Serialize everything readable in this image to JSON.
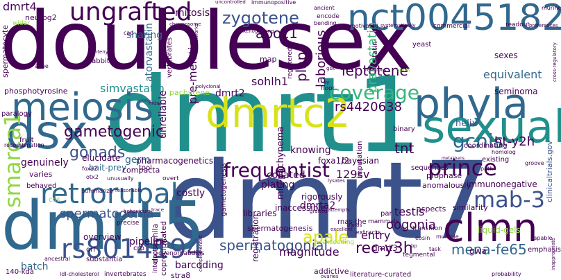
{
  "title": "",
  "palette": {
    "purple": "#440154",
    "indigo": "#3b528b",
    "blue": "#31688e",
    "teal": "#21908d",
    "green": "#35b779",
    "lime": "#90d743",
    "yellow": "#d8e219"
  },
  "words": [
    "doublesex",
    "dmrt1",
    "dmrt7",
    "dmrt5",
    "dsx",
    "sexual",
    "dmrtc2",
    "meiosis",
    "phyla",
    "nct00451828",
    "ungrafted",
    "clmn",
    "retrorubal",
    "prince",
    "rs8014194",
    "mab-3",
    "frequentist",
    "smarca1",
    "gcnis",
    "coverage",
    "dmrt4",
    "zygotene",
    "spermatogonia",
    "gonads",
    "gametogenic",
    "apale",
    "leptotene",
    "rec-y3h",
    "mena-fe65",
    "spermatogonial",
    "tnt",
    "apoc1",
    "sohlh1",
    "rs4420638",
    "mitosis",
    "plap",
    "laborious",
    "pravastatin",
    "atorvastatin",
    "simvastatin",
    "pre-meiotic",
    "dmrt2",
    "dmrta2",
    "ht-y2h",
    "equivalent",
    "seminoma",
    "helix",
    "immunonegative",
    "oogonia",
    "testis",
    "129sv",
    "magnitude",
    "entry",
    "barcoding",
    "pipeline",
    "batch",
    "overview",
    "costly",
    "collated",
    "plating",
    "knowing",
    "genuinely",
    "bait-prey",
    "germ",
    "sharing",
    "pachytene",
    "unreliable",
    "mid-pachynema",
    "foxa1/2",
    "bayesian",
    "neurog2",
    "phosphotyrosine",
    "paralogy",
    "spermatocyte",
    "sexes",
    "prophase",
    "rigorously",
    "inaccessible",
    "liquid-gels",
    "aspects",
    "similarity",
    "coordinating",
    "clinicaltrials.gov",
    "similarity",
    "anomalously",
    "gwa",
    "emphasis",
    "gametogenesis",
    "libraries",
    "pharmacogenetics",
    "spermatogenesis",
    "dmrt3",
    "registration",
    "drosophila",
    "coprecipitated",
    "rnas-the",
    "crp",
    "tegmental",
    "addictive",
    "stra8",
    "caenorhabditis",
    "invertebrates",
    "ldl-cholesterol",
    "ancestral",
    "140-kda",
    "orf",
    "substantia",
    "compacta",
    "elucidate",
    "varies",
    "fruit",
    "recombination",
    "behaved",
    "cos",
    "tool",
    "floor",
    "map",
    "statin",
    "yeast",
    "commercial",
    "readout",
    "preferences",
    "encode",
    "bending",
    "motivated",
    "systematically",
    "ancient",
    "uncontrolled",
    "immunopositive",
    "chromosome",
    "networks",
    "rabbit",
    "synteny",
    "apoe",
    "wider",
    "vertebrates",
    "presomitic",
    "registered",
    "xenografting",
    "cap",
    "xy",
    "arose",
    "relations",
    "spots",
    "transition",
    "sequences",
    "existing",
    "path",
    "groove",
    "homolog",
    "metazoans",
    "binary",
    "imputation",
    "overt",
    "unusually",
    "foxa2",
    "otx2",
    "summarize",
    "reasonable",
    "precise",
    "behaviours",
    "trace",
    "interactors",
    "complemented",
    "extracts",
    "mammals",
    "par",
    "excellent",
    "bands",
    "exceeding",
    "multiple",
    "probability",
    "literature-curated",
    "ovaries",
    "attempts",
    "grafted",
    "lysates",
    "polyclonal",
    "gsk",
    "murine",
    "cross-regulatory",
    "inappropriate",
    "capable",
    "task",
    "eosin",
    "bp",
    "mda"
  ]
}
